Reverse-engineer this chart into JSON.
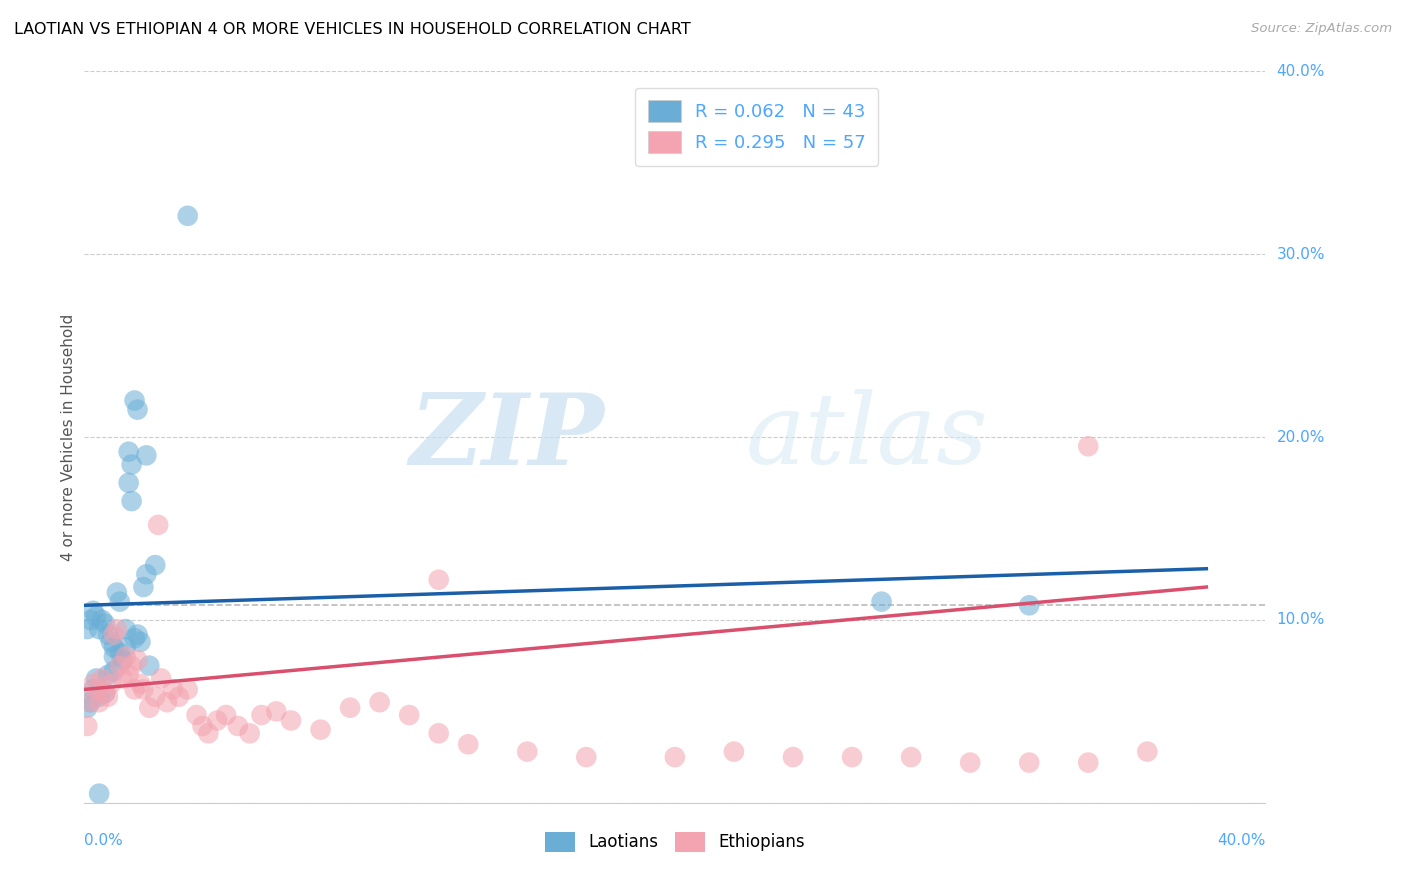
{
  "title": "LAOTIAN VS ETHIOPIAN 4 OR MORE VEHICLES IN HOUSEHOLD CORRELATION CHART",
  "source": "Source: ZipAtlas.com",
  "ylabel": "4 or more Vehicles in Household",
  "watermark_zip": "ZIP",
  "watermark_atlas": "atlas",
  "x_min": 0.0,
  "x_max": 0.4,
  "y_min": 0.0,
  "y_max": 0.4,
  "x_ticks": [
    0.0,
    0.1,
    0.2,
    0.3,
    0.4
  ],
  "x_tick_labels_bottom_left": "0.0%",
  "x_tick_labels_bottom_right": "40.0%",
  "y_ticks": [
    0.0,
    0.1,
    0.2,
    0.3,
    0.4
  ],
  "y_tick_labels_right": [
    "",
    "10.0%",
    "20.0%",
    "30.0%",
    "40.0%"
  ],
  "legend1_label": "R = 0.062   N = 43",
  "legend2_label": "R = 0.295   N = 57",
  "legend_bottom_label1": "Laotians",
  "legend_bottom_label2": "Ethiopians",
  "blue_color": "#6aaed6",
  "pink_color": "#f4a3b0",
  "blue_line_color": "#1a5fa8",
  "pink_line_color": "#d94f6e",
  "dashed_color": "#bbbbbb",
  "grid_color": "#cccccc",
  "tick_color": "#4da6ff",
  "laotian_x": [
    0.001,
    0.002,
    0.003,
    0.004,
    0.005,
    0.006,
    0.007,
    0.008,
    0.009,
    0.01,
    0.011,
    0.012,
    0.013,
    0.014,
    0.015,
    0.016,
    0.017,
    0.018,
    0.019,
    0.02,
    0.021,
    0.022,
    0.003,
    0.004,
    0.005,
    0.007,
    0.008,
    0.01,
    0.012,
    0.014,
    0.015,
    0.016,
    0.017,
    0.018,
    0.021,
    0.024,
    0.035,
    0.27,
    0.32,
    0.002,
    0.005,
    0.01,
    0.001
  ],
  "laotian_y": [
    0.095,
    0.1,
    0.105,
    0.102,
    0.095,
    0.1,
    0.098,
    0.092,
    0.088,
    0.085,
    0.115,
    0.11,
    0.078,
    0.085,
    0.175,
    0.165,
    0.09,
    0.092,
    0.088,
    0.118,
    0.125,
    0.075,
    0.062,
    0.068,
    0.058,
    0.06,
    0.07,
    0.072,
    0.082,
    0.095,
    0.192,
    0.185,
    0.22,
    0.215,
    0.19,
    0.13,
    0.321,
    0.11,
    0.108,
    0.055,
    0.005,
    0.08,
    0.052
  ],
  "ethiopian_x": [
    0.001,
    0.002,
    0.003,
    0.004,
    0.005,
    0.006,
    0.007,
    0.008,
    0.009,
    0.01,
    0.011,
    0.012,
    0.013,
    0.014,
    0.015,
    0.016,
    0.017,
    0.018,
    0.019,
    0.02,
    0.022,
    0.024,
    0.026,
    0.028,
    0.03,
    0.032,
    0.035,
    0.038,
    0.04,
    0.042,
    0.045,
    0.048,
    0.052,
    0.056,
    0.06,
    0.065,
    0.07,
    0.08,
    0.09,
    0.1,
    0.11,
    0.12,
    0.13,
    0.15,
    0.17,
    0.2,
    0.22,
    0.24,
    0.26,
    0.28,
    0.3,
    0.32,
    0.34,
    0.36,
    0.34,
    0.025,
    0.12
  ],
  "ethiopian_y": [
    0.042,
    0.055,
    0.065,
    0.062,
    0.055,
    0.068,
    0.06,
    0.058,
    0.065,
    0.092,
    0.095,
    0.075,
    0.068,
    0.08,
    0.07,
    0.075,
    0.062,
    0.078,
    0.065,
    0.062,
    0.052,
    0.058,
    0.068,
    0.055,
    0.062,
    0.058,
    0.062,
    0.048,
    0.042,
    0.038,
    0.045,
    0.048,
    0.042,
    0.038,
    0.048,
    0.05,
    0.045,
    0.04,
    0.052,
    0.055,
    0.048,
    0.038,
    0.032,
    0.028,
    0.025,
    0.025,
    0.028,
    0.025,
    0.025,
    0.025,
    0.022,
    0.022,
    0.022,
    0.028,
    0.195,
    0.152,
    0.122
  ],
  "blue_trend_x": [
    0.0,
    0.38
  ],
  "blue_trend_y": [
    0.108,
    0.128
  ],
  "pink_trend_x": [
    0.0,
    0.38
  ],
  "pink_trend_y": [
    0.062,
    0.118
  ],
  "dashed_line_x": [
    0.0,
    0.4
  ],
  "dashed_line_y": [
    0.108,
    0.108
  ]
}
